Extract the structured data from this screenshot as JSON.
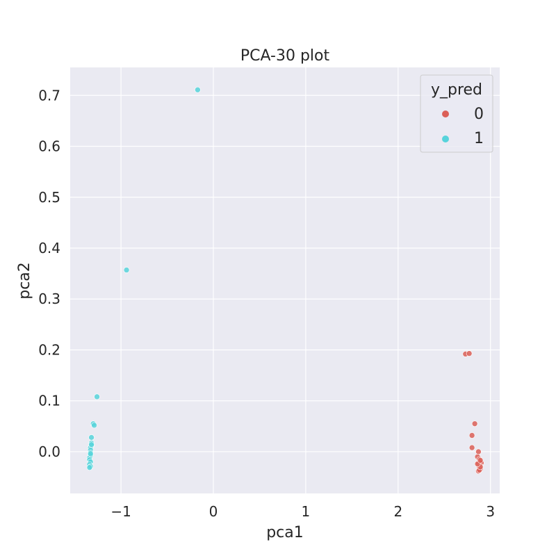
{
  "chart_data": {
    "type": "scatter",
    "title": "PCA-30 plot",
    "xlabel": "pca1",
    "ylabel": "pca2",
    "xlim": [
      -1.55,
      3.1
    ],
    "ylim": [
      -0.082,
      0.755
    ],
    "xticks": [
      -1,
      0,
      1,
      2,
      3
    ],
    "xtick_labels": [
      "−1",
      "0",
      "1",
      "2",
      "3"
    ],
    "yticks": [
      0.0,
      0.1,
      0.2,
      0.3,
      0.4,
      0.5,
      0.6,
      0.7
    ],
    "ytick_labels": [
      "0.0",
      "0.1",
      "0.2",
      "0.3",
      "0.4",
      "0.5",
      "0.6",
      "0.7"
    ],
    "grid": true,
    "legend": {
      "title": "y_pred",
      "placement": "top-right"
    },
    "series": [
      {
        "name": "0",
        "color": "#db5f57",
        "points": [
          [
            2.73,
            0.192
          ],
          [
            2.77,
            0.193
          ],
          [
            2.83,
            0.055
          ],
          [
            2.8,
            0.032
          ],
          [
            2.8,
            0.008
          ],
          [
            2.87,
            0.0
          ],
          [
            2.86,
            -0.01
          ],
          [
            2.88,
            -0.015
          ],
          [
            2.89,
            -0.02
          ],
          [
            2.87,
            -0.024
          ],
          [
            2.88,
            -0.026
          ],
          [
            2.9,
            -0.022
          ],
          [
            2.89,
            -0.028
          ],
          [
            2.88,
            -0.031
          ],
          [
            2.89,
            -0.034
          ],
          [
            2.87,
            -0.038
          ],
          [
            2.88,
            -0.036
          ],
          [
            2.89,
            -0.03
          ],
          [
            2.86,
            -0.024
          ],
          [
            2.89,
            -0.017
          ]
        ]
      },
      {
        "name": "1",
        "color": "#57d3db",
        "points": [
          [
            -0.17,
            0.711
          ],
          [
            -0.94,
            0.357
          ],
          [
            -1.26,
            0.108
          ],
          [
            -1.3,
            0.055
          ],
          [
            -1.29,
            0.052
          ],
          [
            -1.32,
            0.028
          ],
          [
            -1.32,
            0.017
          ],
          [
            -1.32,
            0.012
          ],
          [
            -1.33,
            0.008
          ],
          [
            -1.33,
            0.003
          ],
          [
            -1.33,
            -0.002
          ],
          [
            -1.33,
            -0.007
          ],
          [
            -1.34,
            -0.012
          ],
          [
            -1.34,
            -0.016
          ],
          [
            -1.33,
            -0.02
          ],
          [
            -1.34,
            -0.025
          ],
          [
            -1.33,
            -0.029
          ],
          [
            -1.34,
            -0.031
          ],
          [
            -1.33,
            -0.004
          ],
          [
            -1.32,
            0.014
          ]
        ]
      }
    ]
  }
}
